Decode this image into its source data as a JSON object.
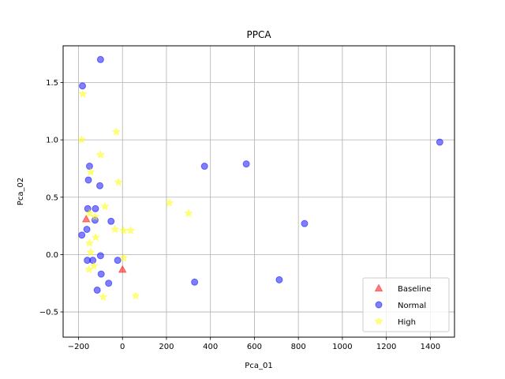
{
  "chart_data": {
    "type": "scatter",
    "title": "PPCA",
    "xlabel": "Pca_01",
    "ylabel": "Pca_02",
    "xlim": [
      -270,
      1510
    ],
    "ylim": [
      -0.72,
      1.82
    ],
    "xticks": [
      -200,
      0,
      200,
      400,
      600,
      800,
      1000,
      1200,
      1400
    ],
    "yticks": [
      -0.5,
      0.0,
      0.5,
      1.0,
      1.5
    ],
    "xtick_labels": [
      "−200",
      "0",
      "200",
      "400",
      "600",
      "800",
      "1000",
      "1200",
      "1400"
    ],
    "ytick_labels": [
      "−0.5",
      "0.0",
      "0.5",
      "1.0",
      "1.5"
    ],
    "grid": true,
    "legend_position": "lower-right",
    "series": [
      {
        "name": "Baseline",
        "marker": "triangle",
        "color": "#ff0000",
        "points": [
          [
            -165,
            0.31
          ],
          [
            0,
            -0.13
          ]
        ]
      },
      {
        "name": "Normal",
        "marker": "circle",
        "color": "#0000ff",
        "points": [
          [
            -100,
            1.7
          ],
          [
            -182,
            1.47
          ],
          [
            -150,
            0.77
          ],
          [
            -155,
            0.65
          ],
          [
            -103,
            0.6
          ],
          [
            -158,
            0.4
          ],
          [
            -123,
            0.4
          ],
          [
            -125,
            0.3
          ],
          [
            -52,
            0.29
          ],
          [
            -162,
            0.22
          ],
          [
            -185,
            0.17
          ],
          [
            -100,
            -0.01
          ],
          [
            -160,
            -0.05
          ],
          [
            -135,
            -0.05
          ],
          [
            -22,
            -0.05
          ],
          [
            -97,
            -0.17
          ],
          [
            -63,
            -0.25
          ],
          [
            -115,
            -0.31
          ],
          [
            373,
            0.77
          ],
          [
            563,
            0.79
          ],
          [
            828,
            0.27
          ],
          [
            1443,
            0.98
          ],
          [
            328,
            -0.24
          ],
          [
            713,
            -0.22
          ]
        ]
      },
      {
        "name": "High",
        "marker": "star",
        "color": "#ffff00",
        "points": [
          [
            -180,
            1.4
          ],
          [
            -186,
            1.0
          ],
          [
            -28,
            1.07
          ],
          [
            -100,
            0.87
          ],
          [
            -145,
            0.72
          ],
          [
            -18,
            0.63
          ],
          [
            -80,
            0.42
          ],
          [
            213,
            0.45
          ],
          [
            300,
            0.36
          ],
          [
            -150,
            0.36
          ],
          [
            -125,
            0.33
          ],
          [
            -34,
            0.22
          ],
          [
            5,
            0.21
          ],
          [
            37,
            0.21
          ],
          [
            -122,
            0.15
          ],
          [
            -150,
            0.1
          ],
          [
            -145,
            0.02
          ],
          [
            5,
            -0.03
          ],
          [
            -130,
            -0.1
          ],
          [
            -152,
            -0.13
          ],
          [
            -88,
            -0.37
          ],
          [
            60,
            -0.36
          ]
        ]
      }
    ]
  }
}
